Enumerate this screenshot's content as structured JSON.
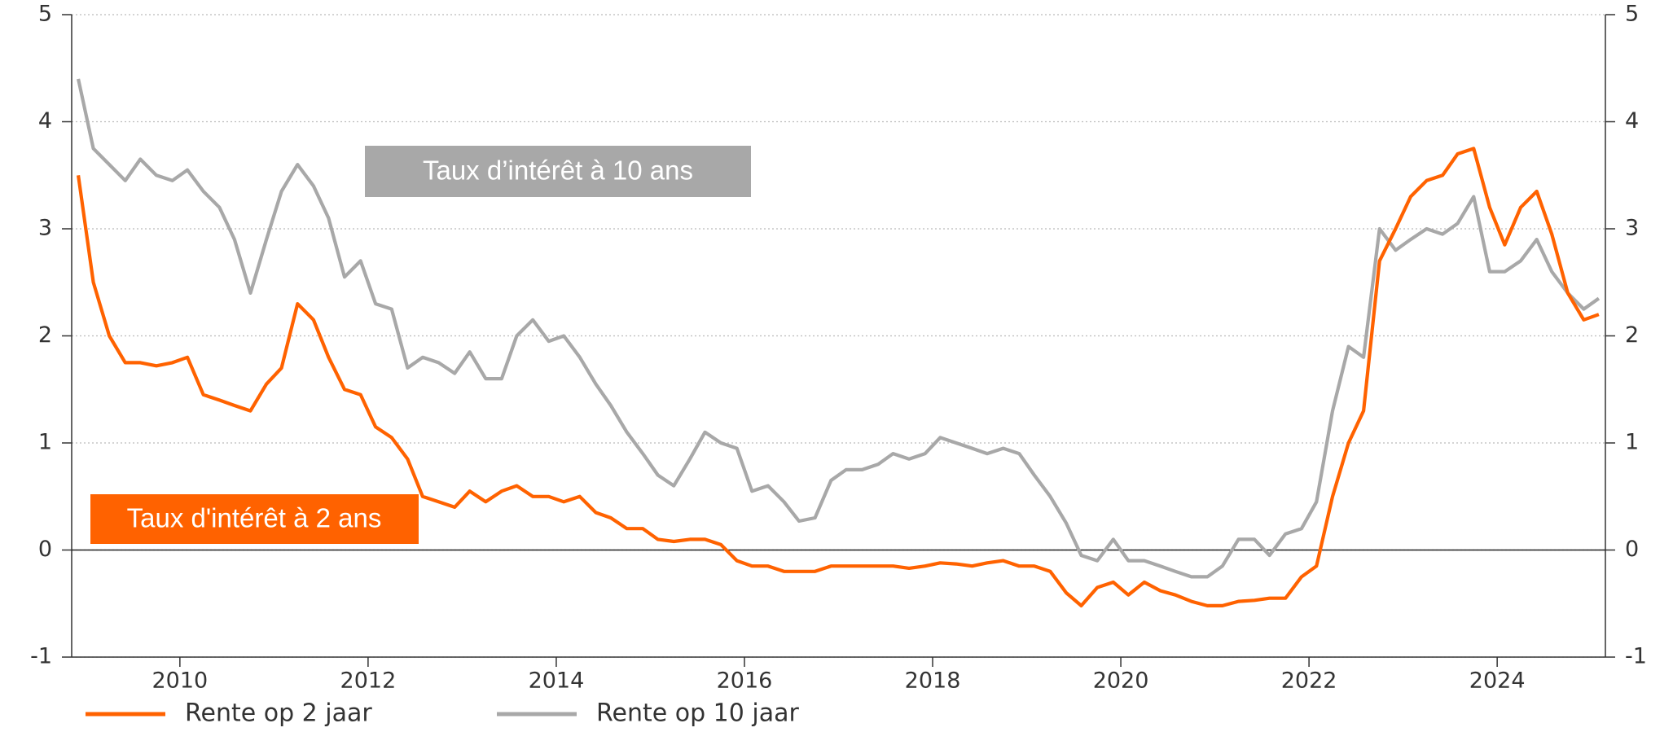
{
  "chart_data": {
    "type": "line",
    "annotations": [
      "Taux d’intérêt à 10 ans",
      "Taux d'intérêt à 2 ans"
    ],
    "xlim": [
      2008.85,
      2025.15
    ],
    "xticks": [
      2010,
      2012,
      2014,
      2016,
      2018,
      2020,
      2022,
      2024
    ],
    "ylim": [
      -1,
      5
    ],
    "yticks": [
      -1,
      0,
      1,
      2,
      3,
      4,
      5
    ],
    "y2lim": [
      -1,
      5
    ],
    "y2ticks": [
      -1,
      0,
      1,
      2,
      3,
      4,
      5
    ],
    "grid": true,
    "legend": "bottom",
    "x": [
      2008.92,
      2009.08,
      2009.25,
      2009.42,
      2009.58,
      2009.75,
      2009.92,
      2010.08,
      2010.25,
      2010.42,
      2010.58,
      2010.75,
      2010.92,
      2011.08,
      2011.25,
      2011.42,
      2011.58,
      2011.75,
      2011.92,
      2012.08,
      2012.25,
      2012.42,
      2012.58,
      2012.75,
      2012.92,
      2013.08,
      2013.25,
      2013.42,
      2013.58,
      2013.75,
      2013.92,
      2014.08,
      2014.25,
      2014.42,
      2014.58,
      2014.75,
      2014.92,
      2015.08,
      2015.25,
      2015.42,
      2015.58,
      2015.75,
      2015.92,
      2016.08,
      2016.25,
      2016.42,
      2016.58,
      2016.75,
      2016.92,
      2017.08,
      2017.25,
      2017.42,
      2017.58,
      2017.75,
      2017.92,
      2018.08,
      2018.25,
      2018.42,
      2018.58,
      2018.75,
      2018.92,
      2019.08,
      2019.25,
      2019.42,
      2019.58,
      2019.75,
      2019.92,
      2020.08,
      2020.25,
      2020.42,
      2020.58,
      2020.75,
      2020.92,
      2021.08,
      2021.25,
      2021.42,
      2021.58,
      2021.75,
      2021.92,
      2022.08,
      2022.25,
      2022.42,
      2022.58,
      2022.75,
      2022.92,
      2023.08,
      2023.25,
      2023.42,
      2023.58,
      2023.75,
      2023.92,
      2024.08,
      2024.25,
      2024.42,
      2024.58,
      2024.75,
      2024.92,
      2025.08
    ],
    "series": [
      {
        "name": "Rente op 2 jaar",
        "color": "#ff6200",
        "values": [
          3.5,
          2.5,
          2.0,
          1.75,
          1.75,
          1.72,
          1.75,
          1.8,
          1.45,
          1.4,
          1.35,
          1.3,
          1.55,
          1.7,
          2.3,
          2.15,
          1.8,
          1.5,
          1.45,
          1.15,
          1.05,
          0.85,
          0.5,
          0.45,
          0.4,
          0.55,
          0.45,
          0.55,
          0.6,
          0.5,
          0.5,
          0.45,
          0.5,
          0.35,
          0.3,
          0.2,
          0.2,
          0.1,
          0.08,
          0.1,
          0.1,
          0.05,
          -0.1,
          -0.15,
          -0.15,
          -0.2,
          -0.2,
          -0.2,
          -0.15,
          -0.15,
          -0.15,
          -0.15,
          -0.15,
          -0.17,
          -0.15,
          -0.12,
          -0.13,
          -0.15,
          -0.12,
          -0.1,
          -0.15,
          -0.15,
          -0.2,
          -0.4,
          -0.52,
          -0.35,
          -0.3,
          -0.42,
          -0.3,
          -0.38,
          -0.42,
          -0.48,
          -0.52,
          -0.52,
          -0.48,
          -0.47,
          -0.45,
          -0.45,
          -0.25,
          -0.15,
          0.5,
          1.0,
          1.3,
          2.7,
          3.0,
          3.3,
          3.45,
          3.5,
          3.7,
          3.75,
          3.2,
          2.85,
          3.2,
          3.35,
          2.95,
          2.4,
          2.15,
          2.2
        ]
      },
      {
        "name": "Rente op 10 jaar",
        "color": "#a8a8a8",
        "values": [
          4.4,
          3.75,
          3.6,
          3.45,
          3.65,
          3.5,
          3.45,
          3.55,
          3.35,
          3.2,
          2.9,
          2.4,
          2.9,
          3.35,
          3.6,
          3.4,
          3.1,
          2.55,
          2.7,
          2.3,
          2.25,
          1.7,
          1.8,
          1.75,
          1.65,
          1.85,
          1.6,
          1.6,
          2.0,
          2.15,
          1.95,
          2.0,
          1.8,
          1.55,
          1.35,
          1.1,
          0.9,
          0.7,
          0.6,
          0.85,
          1.1,
          1.0,
          0.95,
          0.55,
          0.6,
          0.45,
          0.27,
          0.3,
          0.65,
          0.75,
          0.75,
          0.8,
          0.9,
          0.85,
          0.9,
          1.05,
          1.0,
          0.95,
          0.9,
          0.95,
          0.9,
          0.7,
          0.5,
          0.25,
          -0.05,
          -0.1,
          0.1,
          -0.1,
          -0.1,
          -0.15,
          -0.2,
          -0.25,
          -0.25,
          -0.15,
          0.1,
          0.1,
          -0.05,
          0.15,
          0.2,
          0.45,
          1.3,
          1.9,
          1.8,
          3.0,
          2.8,
          2.9,
          3.0,
          2.95,
          3.05,
          3.3,
          2.6,
          2.6,
          2.7,
          2.9,
          2.6,
          2.4,
          2.25,
          2.35
        ]
      }
    ]
  }
}
